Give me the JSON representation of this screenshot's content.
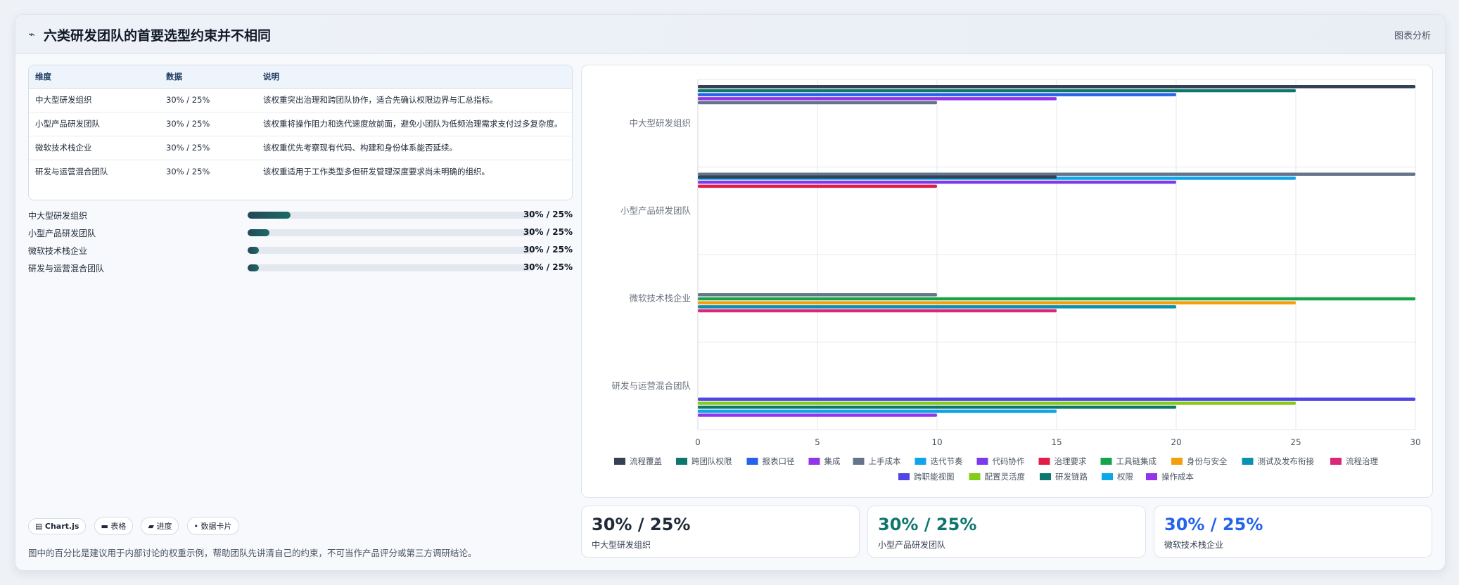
{
  "header": {
    "title": "六类研发团队的首要选型约束并不相同",
    "right_label": "图表分析"
  },
  "table": {
    "headers": [
      "维度",
      "数据",
      "说明"
    ],
    "rows": [
      [
        "中大型研发组织",
        "30% / 25%",
        "该权重突出治理和跨团队协作，适合先确认权限边界与汇总指标。"
      ],
      [
        "小型产品研发团队",
        "30% / 25%",
        "该权重将操作阻力和迭代速度放前面，避免小团队为低频治理需求支付过多复杂度。"
      ],
      [
        "微软技术栈企业",
        "30% / 25%",
        "该权重优先考察现有代码、构建和身份体系能否延续。"
      ],
      [
        "研发与运营混合团队",
        "30% / 25%",
        "该权重适用于工作类型多但研发管理深度要求尚未明确的组织。"
      ]
    ]
  },
  "progress": [
    {
      "label": "中大型研发组织",
      "value": "30% / 25%",
      "fraction": 0.15
    },
    {
      "label": "小型产品研发团队",
      "value": "30% / 25%",
      "fraction": 0.075
    },
    {
      "label": "微软技术栈企业",
      "value": "30% / 25%",
      "fraction": 0.04
    },
    {
      "label": "研发与运营混合团队",
      "value": "30% / 25%",
      "fraction": 0.04
    }
  ],
  "chips": [
    "Chart.js",
    "表格",
    "进度",
    "数据卡片"
  ],
  "chip_icons": [
    "chart-icon",
    "table-icon",
    "progress-icon",
    "card-icon"
  ],
  "footnote": "图中的百分比是建议用于内部讨论的权重示例，帮助团队先讲清自己的约束，不可当作产品评分或第三方调研结论。",
  "stats": [
    {
      "value": "30% / 25%",
      "label": "中大型研发组织",
      "color": "#1f2937"
    },
    {
      "value": "30% / 25%",
      "label": "小型产品研发团队",
      "color": "#0f766e"
    },
    {
      "value": "30% / 25%",
      "label": "微软技术栈企业",
      "color": "#2563eb"
    }
  ],
  "chart_data": {
    "type": "bar",
    "orientation": "horizontal",
    "categories": [
      "中大型研发组织",
      "小型产品研发团队",
      "微软技术栈企业",
      "研发与运营混合团队"
    ],
    "xlim": [
      0,
      30
    ],
    "xticks": [
      "0",
      "5",
      "10",
      "15",
      "20",
      "25",
      "30"
    ],
    "grid": true,
    "legend_position": "bottom",
    "series": [
      {
        "name": "流程覆盖",
        "color": "#334155",
        "values": [
          30,
          null,
          null,
          null
        ]
      },
      {
        "name": "跨团队权限",
        "color": "#0f766e",
        "values": [
          25,
          null,
          null,
          null
        ]
      },
      {
        "name": "报表口径",
        "color": "#2563eb",
        "values": [
          20,
          null,
          null,
          null
        ]
      },
      {
        "name": "集成",
        "color": "#9333ea",
        "values": [
          15,
          null,
          null,
          null
        ]
      },
      {
        "name": "上手成本",
        "color": "#64748b",
        "values": [
          10,
          30,
          10,
          null
        ]
      },
      {
        "name": "迭代节奏",
        "color": "#0ea5e9",
        "values": [
          null,
          25,
          null,
          null
        ]
      },
      {
        "name": "代码协作",
        "color": "#7c3aed",
        "values": [
          null,
          20,
          null,
          null
        ]
      },
      {
        "name": "治理要求",
        "color": "#e11d48",
        "values": [
          null,
          10,
          null,
          null
        ]
      },
      {
        "name": "工具链集成",
        "color": "#16a34a",
        "values": [
          null,
          null,
          30,
          null
        ]
      },
      {
        "name": "身份与安全",
        "color": "#f59e0b",
        "values": [
          null,
          null,
          25,
          null
        ]
      },
      {
        "name": "测试及发布衔接",
        "color": "#0891b2",
        "values": [
          null,
          null,
          20,
          null
        ]
      },
      {
        "name": "流程治理",
        "color": "#db2777",
        "values": [
          null,
          null,
          15,
          null
        ]
      },
      {
        "name": "跨职能视图",
        "color": "#4f46e5",
        "values": [
          null,
          null,
          null,
          30
        ]
      },
      {
        "name": "配置灵活度",
        "color": "#84cc16",
        "values": [
          null,
          null,
          null,
          25
        ]
      },
      {
        "name": "研发链路",
        "color": "#0f766e",
        "values": [
          null,
          null,
          null,
          20
        ]
      },
      {
        "name": "权限",
        "color": "#0ea5e9",
        "values": [
          null,
          null,
          null,
          15
        ]
      },
      {
        "name": "操作成本",
        "color": "#9333ea",
        "values": [
          null,
          null,
          null,
          10
        ]
      }
    ],
    "extra_bars": [
      {
        "category": 1,
        "series_color": "#334155",
        "value": 15
      }
    ]
  }
}
